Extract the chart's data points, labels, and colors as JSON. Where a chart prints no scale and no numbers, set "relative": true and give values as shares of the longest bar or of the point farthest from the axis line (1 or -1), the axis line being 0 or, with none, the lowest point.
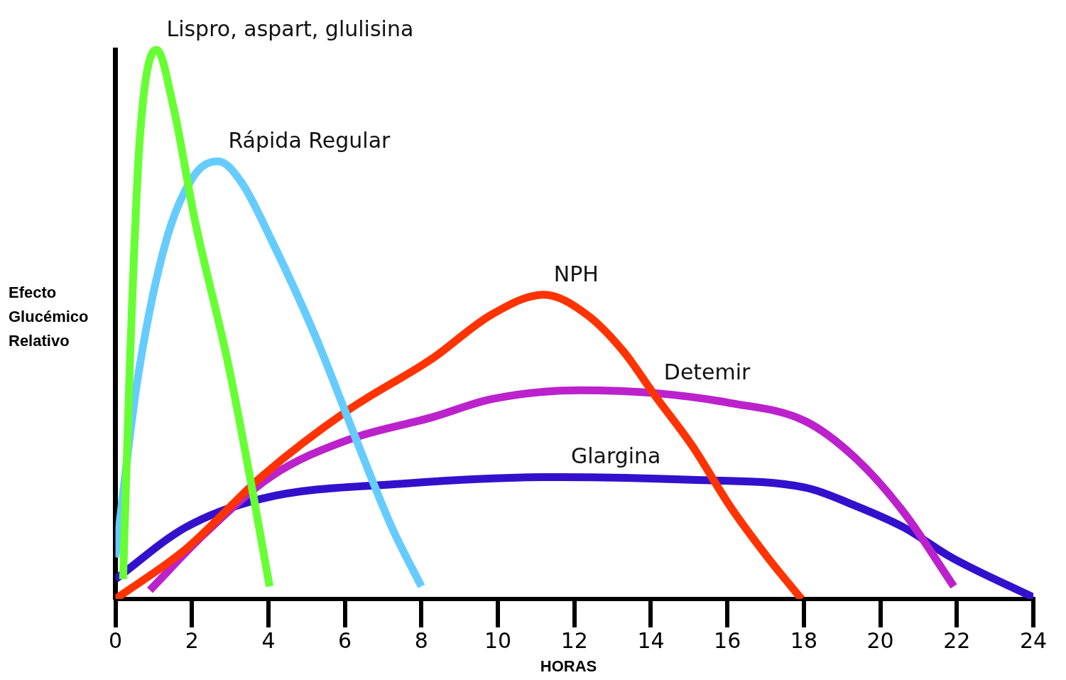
{
  "chart_data": {
    "type": "line",
    "relative": true,
    "xlabel": "HORAS",
    "ylabel": "Efecto Glucémico Relativo",
    "xlim": [
      0,
      24
    ],
    "xticks": [
      0,
      2,
      4,
      6,
      8,
      10,
      12,
      14,
      16,
      18,
      20,
      22,
      24
    ],
    "grid": false,
    "legend": false,
    "marker": "none",
    "line_style": "solid",
    "series": [
      {
        "name": "Lispro, aspart, glulisina",
        "color": "#66ff33",
        "x": [
          0.2,
          0.375,
          0.625,
          1.075,
          1.525,
          2.07,
          2.96,
          3.62,
          4.03
        ],
        "values": [
          0.036,
          0.424,
          0.826,
          1,
          0.893,
          0.692,
          0.424,
          0.183,
          0.023
        ]
      },
      {
        "name": "Rápida Regular",
        "color": "#66ccff",
        "x": [
          0,
          0.575,
          1.325,
          2.07,
          2.69,
          3.29,
          4.09,
          5.23,
          6.37,
          7.23,
          8
        ],
        "values": [
          0.076,
          0.398,
          0.652,
          0.772,
          0.797,
          0.759,
          0.652,
          0.478,
          0.277,
          0.13,
          0.023
        ]
      },
      {
        "name": "NPH",
        "color": "#ff3300",
        "x": [
          0,
          1.825,
          3.84,
          6.09,
          8.29,
          9.84,
          11.2,
          12.32,
          13.28,
          14.1,
          15.1,
          16.06,
          17.05,
          17.94
        ],
        "values": [
          0,
          0.09,
          0.224,
          0.344,
          0.438,
          0.518,
          0.554,
          0.518,
          0.451,
          0.371,
          0.277,
          0.17,
          0.076,
          0
        ]
      },
      {
        "name": "Detemir",
        "color": "#bb22cc",
        "x": [
          0.9,
          2.29,
          4.09,
          6.09,
          8.29,
          9.84,
          12.16,
          14.08,
          16.06,
          18.03,
          19.34,
          20.62,
          21.92
        ],
        "values": [
          0.016,
          0.116,
          0.224,
          0.29,
          0.331,
          0.364,
          0.38,
          0.375,
          0.357,
          0.324,
          0.257,
          0.157,
          0.023
        ]
      },
      {
        "name": "Glargina",
        "color": "#3311cc",
        "x": [
          0,
          1.825,
          3.84,
          7.51,
          11.65,
          15.06,
          18.03,
          19.34,
          20.62,
          21.85,
          24
        ],
        "values": [
          0.036,
          0.13,
          0.183,
          0.21,
          0.222,
          0.217,
          0.203,
          0.17,
          0.13,
          0.076,
          0.003
        ]
      }
    ]
  }
}
